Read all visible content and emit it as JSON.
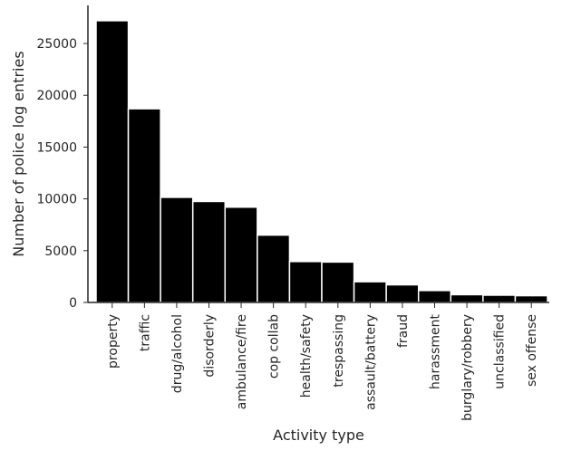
{
  "chart_data": {
    "type": "bar",
    "title": "",
    "xlabel": "Activity type",
    "ylabel": "Number of police log entries",
    "categories": [
      "property",
      "traffic",
      "drug/alcohol",
      "disorderly",
      "ambulance/fire",
      "cop collab",
      "health/safety",
      "trespassing",
      "assault/battery",
      "fraud",
      "harassment",
      "burglary/robbery",
      "unclassified",
      "sex offense"
    ],
    "values": [
      27200,
      18700,
      10150,
      9750,
      9200,
      6500,
      3950,
      3900,
      2000,
      1700,
      1150,
      750,
      700,
      650
    ],
    "ylim": [
      0,
      28500
    ],
    "yticks": [
      0,
      5000,
      10000,
      15000,
      20000,
      25000
    ],
    "grid": false,
    "bar_color": "#000000",
    "bar_edge_color": "#ffffff"
  }
}
